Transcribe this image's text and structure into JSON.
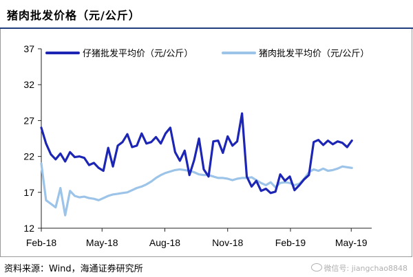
{
  "header": {
    "title": "猪肉批发价格（元/公斤）"
  },
  "footer": {
    "source": "资料来源：Wind，海通证券研究所",
    "watermark": "微信号: jiangchao8848"
  },
  "chart_data": {
    "type": "line",
    "title": "猪肉批发价格（元/公斤）",
    "xlabel": "",
    "ylabel": "",
    "ylim": [
      12,
      37
    ],
    "yticks": [
      12,
      17,
      22,
      27,
      32,
      37
    ],
    "xlim": [
      "2018-02-01",
      "2019-05-31"
    ],
    "xticks": [
      {
        "date": "2018-02-01",
        "label": "Feb-18"
      },
      {
        "date": "2018-05-01",
        "label": "May-18"
      },
      {
        "date": "2018-08-01",
        "label": "Aug-18"
      },
      {
        "date": "2018-11-01",
        "label": "Nov-18"
      },
      {
        "date": "2019-02-01",
        "label": "Feb-19"
      },
      {
        "date": "2019-05-01",
        "label": "May-19"
      }
    ],
    "grid": false,
    "legend_position": "top",
    "series": [
      {
        "name": "仔猪批发平均价（元/公斤）",
        "color": "#1c25b4",
        "points": [
          [
            "2018-02-01",
            26.0
          ],
          [
            "2018-02-08",
            23.8
          ],
          [
            "2018-02-15",
            22.3
          ],
          [
            "2018-02-22",
            21.6
          ],
          [
            "2018-03-01",
            22.4
          ],
          [
            "2018-03-08",
            21.3
          ],
          [
            "2018-03-15",
            22.6
          ],
          [
            "2018-03-22",
            21.9
          ],
          [
            "2018-03-29",
            22.0
          ],
          [
            "2018-04-05",
            21.8
          ],
          [
            "2018-04-12",
            20.8
          ],
          [
            "2018-04-19",
            21.1
          ],
          [
            "2018-04-26",
            20.4
          ],
          [
            "2018-05-03",
            20.0
          ],
          [
            "2018-05-10",
            23.2
          ],
          [
            "2018-05-17",
            20.6
          ],
          [
            "2018-05-24",
            23.5
          ],
          [
            "2018-05-31",
            24.0
          ],
          [
            "2018-06-07",
            25.1
          ],
          [
            "2018-06-14",
            23.3
          ],
          [
            "2018-06-21",
            23.5
          ],
          [
            "2018-06-28",
            25.2
          ],
          [
            "2018-07-05",
            23.8
          ],
          [
            "2018-07-12",
            24.0
          ],
          [
            "2018-07-19",
            24.7
          ],
          [
            "2018-07-26",
            23.8
          ],
          [
            "2018-08-02",
            25.2
          ],
          [
            "2018-08-09",
            26.0
          ],
          [
            "2018-08-16",
            22.6
          ],
          [
            "2018-08-23",
            21.4
          ],
          [
            "2018-08-30",
            22.8
          ],
          [
            "2018-09-06",
            19.4
          ],
          [
            "2018-09-13",
            21.5
          ],
          [
            "2018-09-20",
            24.5
          ],
          [
            "2018-09-27",
            20.2
          ],
          [
            "2018-10-04",
            19.2
          ],
          [
            "2018-10-11",
            24.1
          ],
          [
            "2018-10-18",
            24.2
          ],
          [
            "2018-10-25",
            22.5
          ],
          [
            "2018-11-01",
            24.8
          ],
          [
            "2018-11-08",
            23.5
          ],
          [
            "2018-11-15",
            24.1
          ],
          [
            "2018-11-22",
            28.0
          ],
          [
            "2018-11-29",
            19.2
          ],
          [
            "2018-12-06",
            17.8
          ],
          [
            "2018-12-13",
            18.6
          ],
          [
            "2018-12-20",
            17.2
          ],
          [
            "2018-12-27",
            17.5
          ],
          [
            "2019-01-03",
            16.9
          ],
          [
            "2019-01-10",
            17.1
          ],
          [
            "2019-01-17",
            19.5
          ],
          [
            "2019-01-24",
            18.6
          ],
          [
            "2019-01-31",
            19.2
          ],
          [
            "2019-02-07",
            17.3
          ],
          [
            "2019-02-14",
            18.0
          ],
          [
            "2019-02-21",
            18.8
          ],
          [
            "2019-02-28",
            19.4
          ],
          [
            "2019-03-07",
            24.0
          ],
          [
            "2019-03-14",
            24.3
          ],
          [
            "2019-03-21",
            23.6
          ],
          [
            "2019-03-28",
            24.2
          ],
          [
            "2019-04-04",
            23.7
          ],
          [
            "2019-04-11",
            24.1
          ],
          [
            "2019-04-18",
            23.9
          ],
          [
            "2019-04-25",
            23.3
          ],
          [
            "2019-05-02",
            24.2
          ]
        ]
      },
      {
        "name": "猪肉批发平均价（元/公斤）",
        "color": "#9cc3e8",
        "points": [
          [
            "2018-02-01",
            21.0
          ],
          [
            "2018-02-08",
            15.9
          ],
          [
            "2018-02-15",
            15.4
          ],
          [
            "2018-02-22",
            14.9
          ],
          [
            "2018-03-01",
            17.6
          ],
          [
            "2018-03-08",
            13.8
          ],
          [
            "2018-03-15",
            17.2
          ],
          [
            "2018-03-22",
            16.5
          ],
          [
            "2018-03-29",
            16.3
          ],
          [
            "2018-04-05",
            16.4
          ],
          [
            "2018-04-12",
            16.2
          ],
          [
            "2018-04-19",
            16.1
          ],
          [
            "2018-04-26",
            15.9
          ],
          [
            "2018-05-03",
            16.2
          ],
          [
            "2018-05-10",
            16.5
          ],
          [
            "2018-05-17",
            16.7
          ],
          [
            "2018-05-24",
            16.8
          ],
          [
            "2018-05-31",
            16.9
          ],
          [
            "2018-06-07",
            17.0
          ],
          [
            "2018-06-14",
            17.3
          ],
          [
            "2018-06-21",
            17.6
          ],
          [
            "2018-06-28",
            17.8
          ],
          [
            "2018-07-05",
            18.1
          ],
          [
            "2018-07-12",
            18.5
          ],
          [
            "2018-07-19",
            19.0
          ],
          [
            "2018-07-26",
            19.4
          ],
          [
            "2018-08-02",
            19.7
          ],
          [
            "2018-08-09",
            19.9
          ],
          [
            "2018-08-16",
            20.1
          ],
          [
            "2018-08-23",
            20.2
          ],
          [
            "2018-08-30",
            20.1
          ],
          [
            "2018-09-06",
            20.0
          ],
          [
            "2018-09-13",
            19.8
          ],
          [
            "2018-09-20",
            19.5
          ],
          [
            "2018-09-27",
            19.4
          ],
          [
            "2018-10-04",
            19.4
          ],
          [
            "2018-10-11",
            19.2
          ],
          [
            "2018-10-18",
            19.0
          ],
          [
            "2018-10-25",
            19.0
          ],
          [
            "2018-11-01",
            18.9
          ],
          [
            "2018-11-08",
            18.7
          ],
          [
            "2018-11-15",
            18.9
          ],
          [
            "2018-11-22",
            19.0
          ],
          [
            "2018-11-29",
            19.0
          ],
          [
            "2018-12-06",
            19.1
          ],
          [
            "2018-12-13",
            18.7
          ],
          [
            "2018-12-20",
            18.3
          ],
          [
            "2018-12-27",
            18.0
          ],
          [
            "2019-01-03",
            18.4
          ],
          [
            "2019-01-10",
            17.7
          ],
          [
            "2019-01-17",
            18.3
          ],
          [
            "2019-01-24",
            18.4
          ],
          [
            "2019-01-31",
            18.3
          ],
          [
            "2019-02-07",
            18.0
          ],
          [
            "2019-02-14",
            18.2
          ],
          [
            "2019-02-21",
            18.9
          ],
          [
            "2019-02-28",
            19.8
          ],
          [
            "2019-03-07",
            20.2
          ],
          [
            "2019-03-14",
            20.0
          ],
          [
            "2019-03-21",
            20.3
          ],
          [
            "2019-03-28",
            20.0
          ],
          [
            "2019-04-04",
            20.1
          ],
          [
            "2019-04-11",
            20.3
          ],
          [
            "2019-04-18",
            20.6
          ],
          [
            "2019-04-25",
            20.5
          ],
          [
            "2019-05-02",
            20.4
          ]
        ]
      }
    ]
  }
}
